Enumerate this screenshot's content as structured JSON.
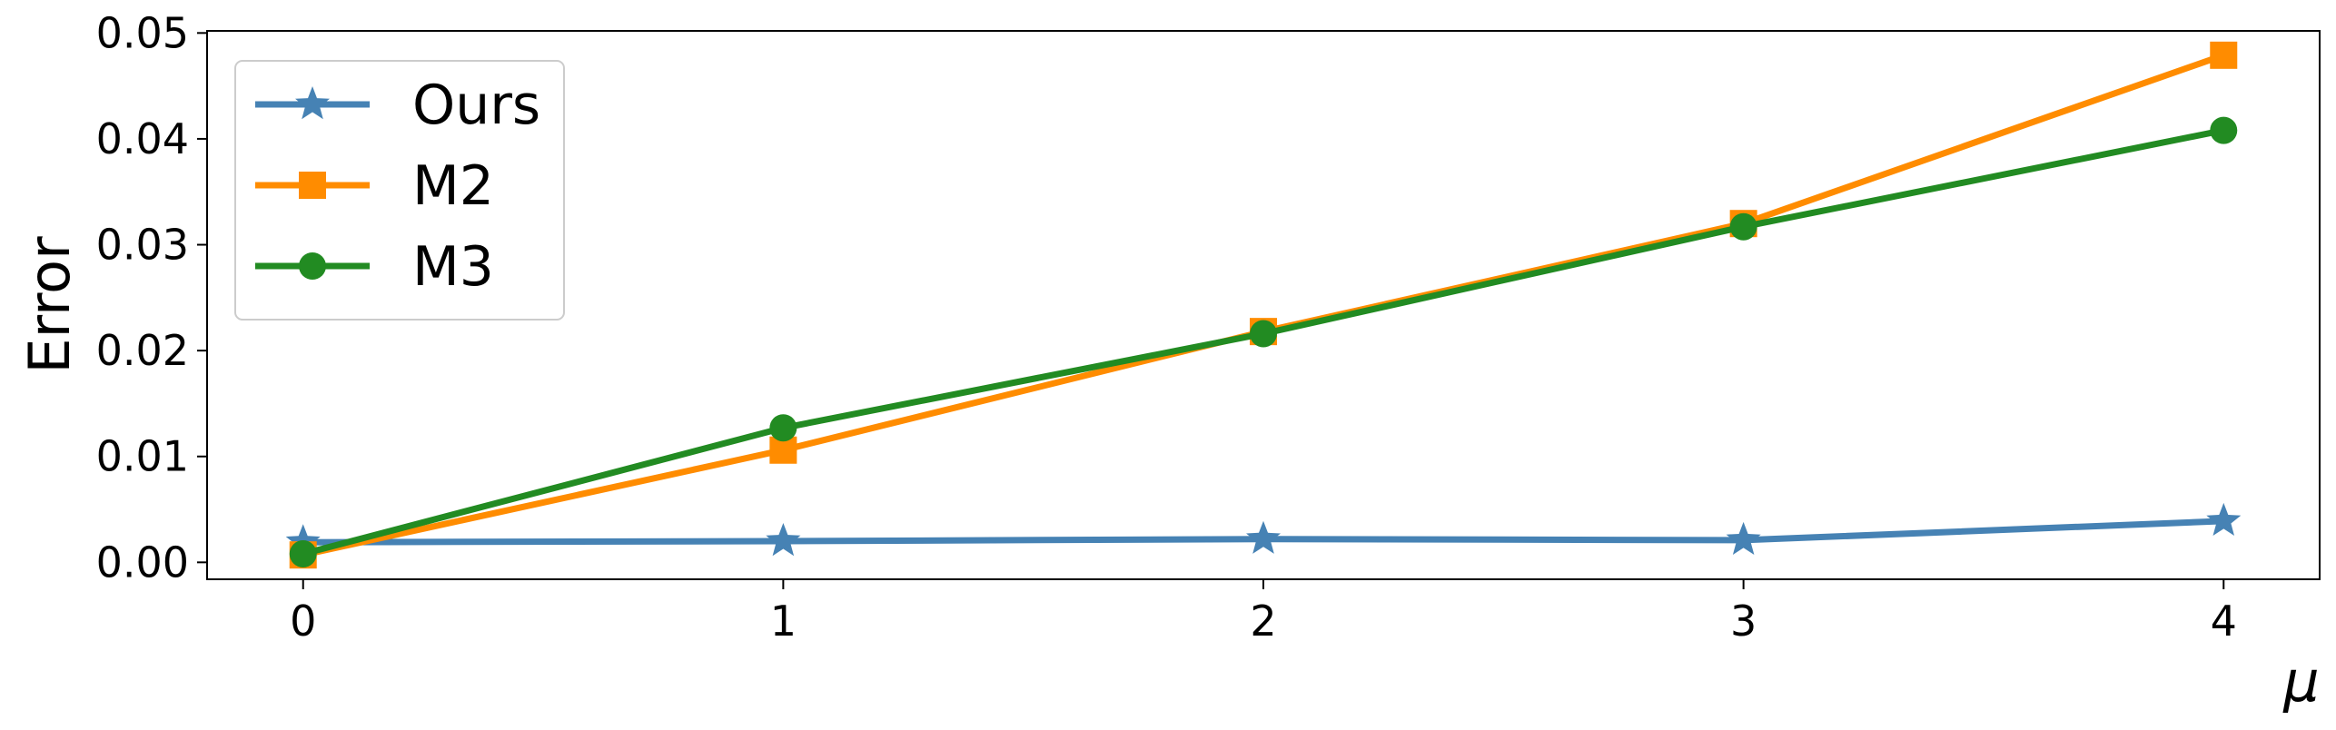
{
  "chart_data": {
    "type": "line",
    "title": "",
    "xlabel": "μ",
    "ylabel": "Error",
    "x": [
      0,
      1,
      2,
      3,
      4
    ],
    "xlim": [
      -0.2,
      4.2
    ],
    "ylim": [
      -0.0016,
      0.0502
    ],
    "xticks": [
      0,
      1,
      2,
      3,
      4
    ],
    "xtick_labels": [
      "0",
      "1",
      "2",
      "3",
      "4"
    ],
    "yticks": [
      0.0,
      0.01,
      0.02,
      0.03,
      0.04,
      0.05
    ],
    "ytick_labels": [
      "0.00",
      "0.01",
      "0.02",
      "0.03",
      "0.04",
      "0.05"
    ],
    "grid": false,
    "legend_position": "top-left",
    "series": [
      {
        "name": "Ours",
        "marker": "star",
        "color": "#4682B4",
        "values": [
          0.0019,
          0.002,
          0.0022,
          0.0021,
          0.0039
        ]
      },
      {
        "name": "M2",
        "marker": "square",
        "color": "#FF8C00",
        "values": [
          0.0007,
          0.0106,
          0.0218,
          0.032,
          0.0479
        ]
      },
      {
        "name": "M3",
        "marker": "circle",
        "color": "#228B22",
        "values": [
          0.0008,
          0.0127,
          0.0216,
          0.0317,
          0.0408
        ]
      }
    ]
  }
}
